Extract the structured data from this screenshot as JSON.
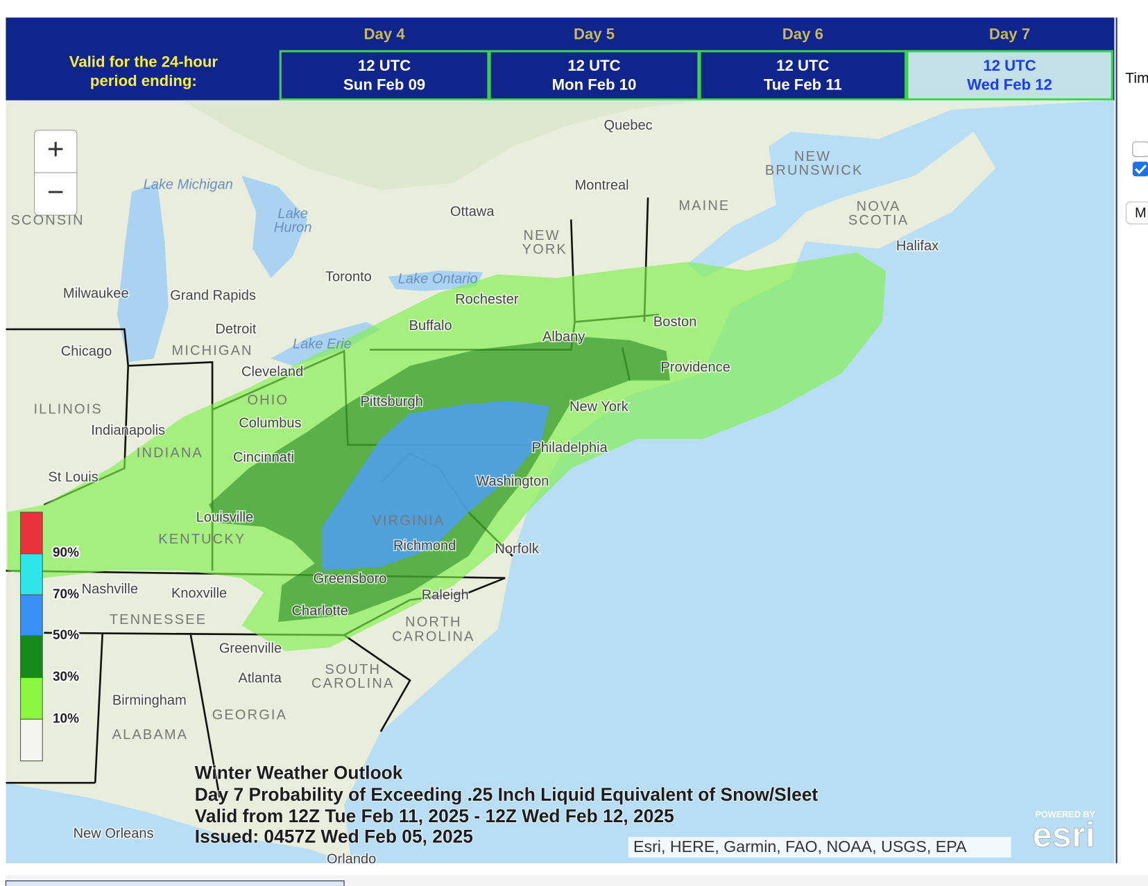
{
  "header": {
    "valid_label": [
      "Valid for the 24-hour",
      "period ending:"
    ],
    "days": [
      {
        "day": "Day 4",
        "time": "12 UTC",
        "date": "Sun Feb 09"
      },
      {
        "day": "Day 5",
        "time": "12 UTC",
        "date": "Mon Feb 10"
      },
      {
        "day": "Day 6",
        "time": "12 UTC",
        "date": "Tue Feb 11"
      },
      {
        "day": "Day 7",
        "time": "12 UTC",
        "date": "Wed Feb 12"
      }
    ]
  },
  "side_panel": {
    "label": "Tim",
    "button": "M"
  },
  "map": {
    "zoom": [
      "+",
      "−"
    ],
    "places": [
      "Quebec",
      "Montreal",
      "Ottawa",
      "NEW",
      "BRUNSWICK",
      "MAINE",
      "NOVA",
      "SCOTIA",
      "Halifax",
      "NEW",
      "YORK",
      "Toronto",
      "Lake Ontario",
      "Rochester",
      "Buffalo",
      "Albany",
      "Boston",
      "Providence",
      "New York",
      "Pittsburgh",
      "Philadelphia",
      "Washington",
      "VIRGINIA",
      "Richmond",
      "Norfolk",
      "Raleigh",
      "NORTH",
      "CAROLINA",
      "Greensboro",
      "Charlotte",
      "Greenville",
      "Atlanta",
      "SOUTH",
      "CAROLINA",
      "GEORGIA",
      "Birmingham",
      "ALABAMA",
      "New Orleans",
      "Orlando",
      "TENNESSEE",
      "Nashville",
      "Knoxville",
      "KENTUCKY",
      "Louisville",
      "St Louis",
      "INDIANA",
      "Indianapolis",
      "Cincinnati",
      "OHIO",
      "Columbus",
      "Cleveland",
      "ILLINOIS",
      "Chicago",
      "MICHIGAN",
      "Detroit",
      "Grand Rapids",
      "Milwaukee",
      "Lake",
      "Huron",
      "Lake Michigan",
      "Lake Erie",
      "SCONSIN"
    ],
    "legend": [
      "90%",
      "70%",
      "50%",
      "30%",
      "10%"
    ],
    "caption": [
      "Winter Weather Outlook",
      "Day 7 Probability of Exceeding .25 Inch Liquid Equivalent of Snow/Sleet",
      "Valid from 12Z Tue Feb 11, 2025 - 12Z Wed Feb 12, 2025",
      "Issued: 0457Z Wed Feb 05, 2025"
    ],
    "attribution": "Esri, HERE, Garmin, FAO, NOAA, USGS, EPA",
    "logo": {
      "powered": "POWERED BY",
      "brand": "esri"
    }
  }
}
